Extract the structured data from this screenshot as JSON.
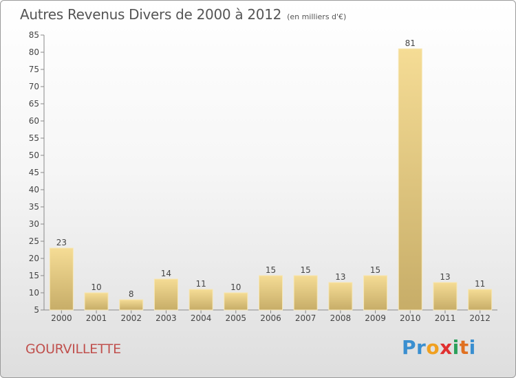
{
  "title": "Autres Revenus Divers de 2000 à 2012",
  "subtitle": "(en milliers d'€)",
  "place": "GOURVILLETTE",
  "logo": {
    "letters": [
      "P",
      "r",
      "o",
      "x",
      "i",
      "t",
      "i"
    ],
    "colors": [
      "#3a8fd0",
      "#3a8fd0",
      "#f0a020",
      "#e03030",
      "#2aa05a",
      "#e07020",
      "#3a8fd0"
    ]
  },
  "colors": {
    "bar_light": "#f5dc95",
    "bar_dark": "#c7ad68",
    "axis": "#888888",
    "text": "#444444",
    "title": "#555555",
    "place": "#c0504d"
  },
  "chart_data": {
    "type": "bar",
    "categories": [
      "2000",
      "2001",
      "2002",
      "2003",
      "2004",
      "2005",
      "2006",
      "2007",
      "2008",
      "2009",
      "2010",
      "2011",
      "2012"
    ],
    "values": [
      23,
      10,
      8,
      14,
      11,
      10,
      15,
      15,
      13,
      15,
      81,
      13,
      11
    ],
    "data_labels": [
      "23",
      "10",
      "8",
      "14",
      "11",
      "10",
      "15",
      "15",
      "13",
      "15",
      "81",
      "13",
      "11"
    ],
    "ylim": [
      5,
      85
    ],
    "yticks": [
      5,
      10,
      15,
      20,
      25,
      30,
      35,
      40,
      45,
      50,
      55,
      60,
      65,
      70,
      75,
      80,
      85
    ],
    "grid": false,
    "legend": "none"
  }
}
